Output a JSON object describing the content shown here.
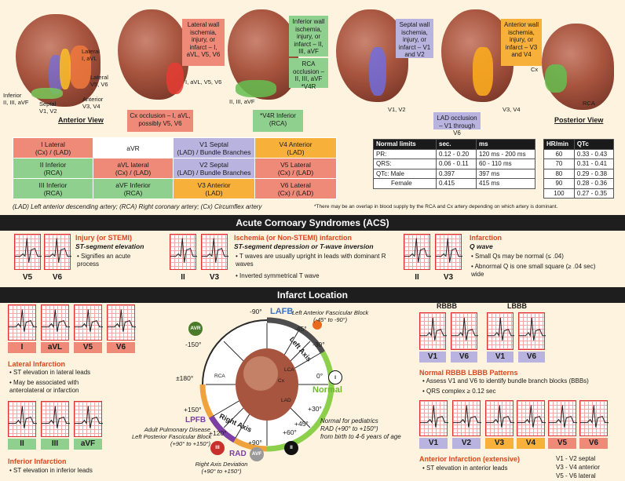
{
  "top": {
    "anterior_view": "Anterior View",
    "posterior_view": "Posterior View",
    "labels": {
      "lateral_avl": "Lateral\nI, aVL",
      "lateral_v5v6": "Lateral\nV5, V6",
      "anterior_v3v4": "Anterior\nV3, V4",
      "inferior": "Inferior\nII, III, aVF",
      "septal": "Septal\nV1, V2",
      "h2_leads": "I, aVL, V5, V6",
      "h3_leads": "II, III, aVF",
      "h4_leads": "V1, V2",
      "h5_leads": "V3, V4",
      "cx": "Cx",
      "rca": "RCA"
    },
    "callouts": {
      "lateral": "Lateral wall ischemia, injury, or infarct – I, aVL, V5, V6",
      "cx_occlusion": "Cx occlusion – I, aVL, possibly V5, V6",
      "inferior": "Inferior wall ischemia, injury, or infarct – II, III, aVF",
      "rca_occlusion": "RCA occlusion – II, III, aVF *V4R",
      "v4r_inferior": "*V4R Inferior (RCA)",
      "septal": "Septal wall ischemia, injury, or infarct – V1 and V2",
      "lad_occlusion": "LAD occlusion – V1 through V6",
      "anterior": "Anterior wall ischemia, injury, or infarct – V3 and V4"
    }
  },
  "lead_table": [
    [
      {
        "t": "I Lateral\n(Cx) / (LAD)",
        "c": "red"
      },
      {
        "t": "aVR",
        "c": "w"
      },
      {
        "t": "V1 Septal\n(LAD) / Bundle Branches",
        "c": "purple"
      },
      {
        "t": "V4 Anterior\n(LAD)",
        "c": "orange"
      }
    ],
    [
      {
        "t": "II Inferior\n(RCA)",
        "c": "green"
      },
      {
        "t": "aVL lateral\n(Cx) / (LAD)",
        "c": "red"
      },
      {
        "t": "V2 Septal\n(LAD) / Bundle Branches",
        "c": "purple"
      },
      {
        "t": "V5 Lateral\n(Cx) / (LAD)",
        "c": "red"
      }
    ],
    [
      {
        "t": "III Inferior\n(RCA)",
        "c": "green"
      },
      {
        "t": "aVF Inferior\n(RCA)",
        "c": "green"
      },
      {
        "t": "V3 Anterior\n(LAD)",
        "c": "orange"
      },
      {
        "t": "V6 Lateral\n(Cx) / (LAD)",
        "c": "red"
      }
    ]
  ],
  "artery_legend": "(LAD) Left anterior descending artery; (RCA) Right coronary artery; (Cx) Circumflex artery",
  "overlap_note": "*There may be an overlap in blood supply by the RCA and Cx artery depending on which artery is dominant.",
  "normal_limits": {
    "headers": [
      "Normal limits",
      "sec.",
      "ms"
    ],
    "rows": [
      [
        "PR:",
        "0.12 - 0.20",
        "120 ms - 200 ms"
      ],
      [
        "QRS:",
        "0.06 - 0.11",
        "60 - 110 ms"
      ],
      [
        "QTc: Male",
        "0.397",
        "397 ms"
      ],
      [
        "Female",
        "0.415",
        "415 ms"
      ]
    ]
  },
  "qtc_table": {
    "headers": [
      "HR/min",
      "QTc"
    ],
    "rows": [
      [
        "60",
        "0.33 - 0.43"
      ],
      [
        "70",
        "0.31 - 0.41"
      ],
      [
        "80",
        "0.29 - 0.38"
      ],
      [
        "90",
        "0.28 - 0.36"
      ],
      [
        "100",
        "0.27 - 0.35"
      ]
    ]
  },
  "acs": {
    "title": "Acute Cornoary Syndromes (ACS)",
    "injury": {
      "title": "Injury (or STEMI)",
      "sub": "ST-segment elevation",
      "bullets": [
        "Signifies an acute process"
      ],
      "leads": [
        "V5",
        "V6"
      ]
    },
    "ischemia": {
      "title": "Ischemia (or Non-STEMI) infarction",
      "sub": "ST-segment depression or T-wave inversion",
      "bullets": [
        "T waves are usually upright in leads with dominant R waves",
        "Inverted symmetrical T wave"
      ],
      "leads": [
        "II",
        "V3"
      ]
    },
    "infarction": {
      "title": "Infarction",
      "sub": "Q wave",
      "bullets": [
        "Small Qs may be normal (≤ .04)",
        "Abnormal Q is one small square (≥ .04 sec) wide"
      ],
      "leads": [
        "II",
        "V3"
      ]
    }
  },
  "infarct": {
    "title": "Infarct Location",
    "lateral": {
      "leads": [
        "I",
        "aVL",
        "V5",
        "V6"
      ],
      "title": "Lateral Infarction",
      "bullets": [
        "ST elevation in lateral leads",
        "May be associated with anterolateral or infarction"
      ]
    },
    "inferior": {
      "leads": [
        "II",
        "III",
        "aVF"
      ],
      "title": "Inferior Infarction",
      "bullets": [
        "ST elevation in inferior leads"
      ]
    },
    "axis": {
      "lafb": "LAFB",
      "lafb_desc": "Left Anterior Fascicular Block\n(-45° to -90°)",
      "lpfb": "LPFB",
      "lpfb_desc": "Adult Pulmonary Disease\nLeft Posterior Fascicular Block\n(+90° to +150°)",
      "rad": "RAD",
      "rad_desc": "Right Axis Deviation\n(+90° to +150°)",
      "normal": "Normal",
      "left_axis": "Left Axis",
      "right_axis": "Right Axis",
      "pediatric": "Normal for pediatrics\nRAD (+90° to +150°)\nfrom birth to 4-6 years of age",
      "degrees": [
        "-90°",
        "-45°",
        "-30°",
        "0°",
        "+30°",
        "+45°",
        "+60°",
        "+90°",
        "+120°",
        "+150°",
        "±180°",
        "-150°"
      ],
      "badges": {
        "avr": "AVR",
        "i": "I",
        "ii": "II",
        "iii": "III",
        "avf": "AVF"
      },
      "vessels": {
        "rca": "RCA",
        "lca": "LCA",
        "cx": "Cx",
        "lad": "LAD"
      }
    },
    "bbb": {
      "rbbb": "RBBB",
      "lbbb": "LBBB",
      "leads": [
        "V1",
        "V6",
        "V1",
        "V6"
      ],
      "title": "Normal RBBB  LBBB Patterns",
      "bullets": [
        "Assess V1 and V6 to identify bundle branch blocks (BBBs)",
        "QRS complex ≥ 0.12 sec"
      ]
    },
    "anterior": {
      "leads": [
        "V1",
        "V2",
        "V3",
        "V4",
        "V5",
        "V6"
      ],
      "title": "Anterior Infarction (extensive)",
      "bullets": [
        "ST elevation in anterior leads"
      ],
      "key": [
        "V1 - V2 septal",
        "V3 - V4 anterior",
        "V5 - V6 lateral"
      ]
    }
  },
  "colors": {
    "red": "#ef8a78",
    "green": "#8fd08f",
    "purple": "#b9b3e0",
    "orange": "#f7b13a",
    "accent": "#d9481f"
  }
}
